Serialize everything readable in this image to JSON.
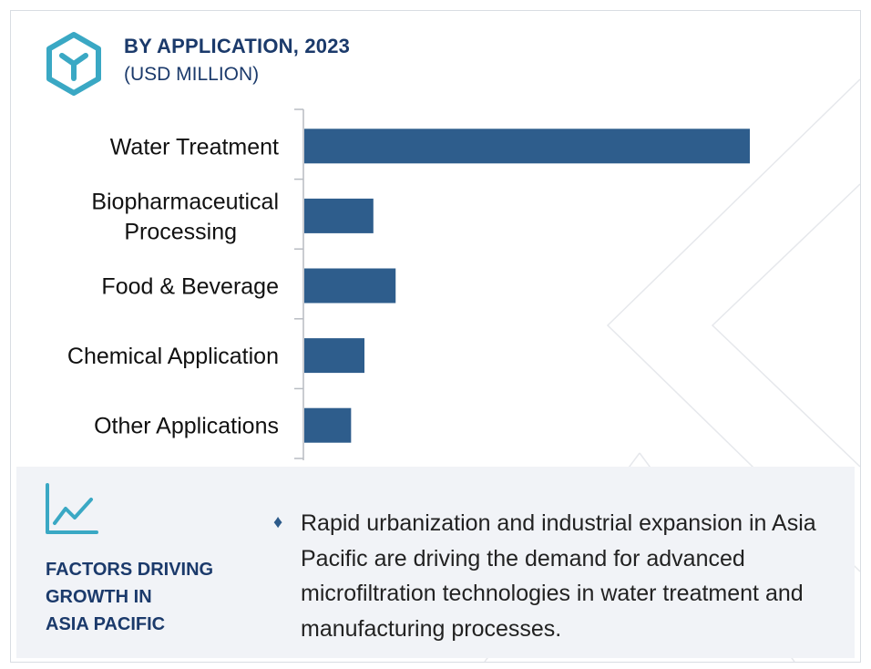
{
  "header": {
    "title": "BY APPLICATION, 2023",
    "subtitle": "(USD MILLION)",
    "logo_icon": "hexagon-y-icon"
  },
  "chart_data": {
    "type": "bar",
    "orientation": "horizontal",
    "title": "BY APPLICATION, 2023",
    "subtitle": "(USD MILLION)",
    "categories": [
      [
        "Water Treatment"
      ],
      [
        "Biopharmaceutical",
        "Processing"
      ],
      [
        "Food & Beverage"
      ],
      [
        "Chemical Application"
      ],
      [
        "Other Applications"
      ]
    ],
    "values": [
      100,
      15.5,
      20.5,
      13.5,
      10.5
    ],
    "xlim": [
      0,
      100
    ],
    "grid": false,
    "legend": "none",
    "bar_color": "#2e5d8c"
  },
  "factors": {
    "icon": "trend-chart-icon",
    "bullet_icon": "diamond-icon",
    "heading_lines": [
      "FACTORS DRIVING",
      "GROWTH IN",
      "ASIA PACIFIC"
    ],
    "text": "Rapid urbanization and industrial expansion in Asia Pacific are driving the demand for advanced microfiltration technologies in water treatment and manufacturing processes."
  },
  "colors": {
    "brand": "#1b3a6b",
    "bar": "#2e5d8c",
    "accent": "#3aa8c4",
    "panel": "#f1f3f7"
  }
}
